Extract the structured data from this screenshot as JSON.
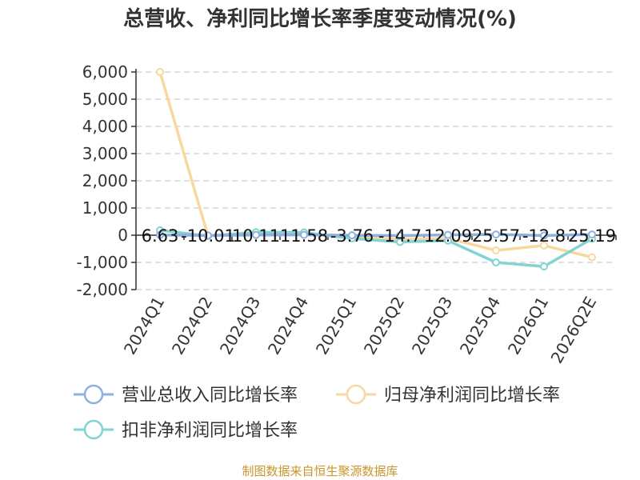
{
  "chart_data": {
    "type": "line",
    "title": "总营收、净利同比增长率季度变动情况(%)",
    "categories": [
      "2024Q1",
      "2024Q2",
      "2024Q3",
      "2024Q4",
      "2025Q1",
      "2025Q2",
      "2025Q3",
      "2025Q4",
      "2026Q1",
      "2026Q2E"
    ],
    "ylim": [
      -2000,
      6000
    ],
    "yticks": [
      6000,
      5000,
      4000,
      3000,
      2000,
      1000,
      0,
      -1000,
      -2000
    ],
    "ytick_labels": [
      "6,000",
      "5,000",
      "4,000",
      "3,000",
      "2,000",
      "1,000",
      "0",
      "-1,000",
      "-2,000"
    ],
    "grid": true,
    "legend_position": "bottom",
    "series": [
      {
        "name": "营业总收入同比增长率",
        "color": "#8fb0dc",
        "values": [
          6.63,
          -10.01,
          10.11,
          11.58,
          -3.76,
          -14.7,
          12.09,
          25.57,
          -12.8,
          25.19
        ],
        "labels": [
          "6.63",
          "-10.01",
          "10.11",
          "11.58",
          "-3.76",
          "-14.7",
          "12.09",
          "25.57",
          "-12.8",
          "25.19"
        ]
      },
      {
        "name": "归母净利润同比增长率",
        "color": "#f7d9a0",
        "values": [
          6000,
          -20,
          80,
          40,
          -80,
          -150,
          -120,
          -560,
          -380,
          -810
        ]
      },
      {
        "name": "扣非净利润同比增长率",
        "color": "#84d3d3",
        "values": [
          180,
          -30,
          110,
          100,
          -120,
          -250,
          -200,
          -1000,
          -1150,
          -130
        ]
      }
    ],
    "source": "制图数据来自恒生聚源数据库"
  }
}
